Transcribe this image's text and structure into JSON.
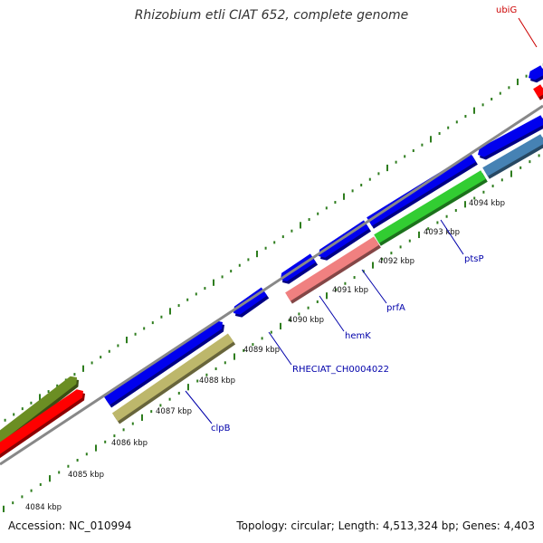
{
  "title": "Rhizobium etli CIAT 652, complete genome",
  "footer": {
    "accession": "Accession: NC_010994",
    "summary": "Topology: circular; Length: 4,513,324 bp; Genes: 4,403"
  },
  "colors": {
    "backbone": "#888888",
    "tick": "#2e7d1e",
    "gene_label": "#0000aa",
    "highlight_label": "#cc0000"
  },
  "ticks": {
    "kbp_labels": [
      "4084 kbp",
      "4085 kbp",
      "4086 kbp",
      "4087 kbp",
      "4088 kbp",
      "4089 kbp",
      "4090 kbp",
      "4091 kbp",
      "4092 kbp",
      "4093 kbp",
      "4094 kbp"
    ]
  },
  "features": [
    {
      "track": "outer",
      "color": "#6b8e23"
    },
    {
      "track": "inner",
      "color": "#ff0000"
    },
    {
      "track": "outer",
      "color": "#0000ee"
    },
    {
      "track": "inner",
      "color": "#bdb76b"
    },
    {
      "track": "outer",
      "color": "#0000ee"
    },
    {
      "track": "outer",
      "color": "#0000ee"
    },
    {
      "track": "outer",
      "color": "#0000ee"
    },
    {
      "track": "inner",
      "color": "#f08080"
    },
    {
      "track": "outer",
      "color": "#0000ee"
    },
    {
      "track": "inner",
      "color": "#32cd32"
    },
    {
      "track": "outer",
      "color": "#0000ee"
    },
    {
      "track": "inner",
      "color": "#4682b4"
    },
    {
      "track": "outer",
      "color": "#0000ee"
    },
    {
      "track": "inner",
      "color": "#ff0000"
    }
  ],
  "gene_labels": [
    {
      "name": "clpB",
      "color": "#0000aa"
    },
    {
      "name": "RHECIAT_CH0004022",
      "color": "#0000aa"
    },
    {
      "name": "hemK",
      "color": "#0000aa"
    },
    {
      "name": "prfA",
      "color": "#0000aa"
    },
    {
      "name": "ptsP",
      "color": "#0000aa"
    },
    {
      "name": "ubiG",
      "color": "#cc0000"
    }
  ]
}
